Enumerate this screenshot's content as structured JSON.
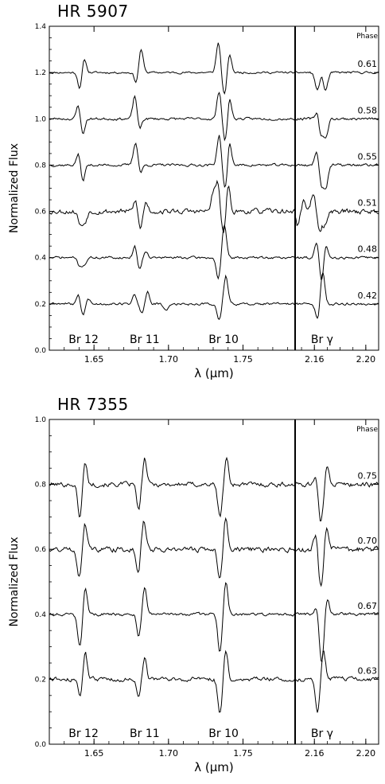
{
  "chart_data": [
    {
      "type": "line",
      "title": "HR 5907",
      "ylabel": "Normalized Flux",
      "xlabel": "λ (μm)",
      "ylim": [
        0.0,
        1.4
      ],
      "yticks": [
        "0.0",
        "0.2",
        "0.4",
        "0.6",
        "0.8",
        "1.0",
        "1.2",
        "1.4"
      ],
      "subpanels": [
        {
          "xlim": [
            1.62,
            1.785
          ],
          "xticks": [
            "1.65",
            "1.70",
            "1.75"
          ],
          "tick_values": [
            1.65,
            1.7,
            1.75
          ]
        },
        {
          "xlim": [
            2.145,
            2.21
          ],
          "xticks": [
            "2.16",
            "2.20"
          ],
          "tick_values": [
            2.16,
            2.2
          ]
        }
      ],
      "line_labels": [
        {
          "text": "Br 12",
          "x": 1.643,
          "panel": 0
        },
        {
          "text": "Br 11",
          "x": 1.684,
          "panel": 0
        },
        {
          "text": "Br 10",
          "x": 1.737,
          "panel": 0
        },
        {
          "text": "Br γ",
          "x": 2.166,
          "panel": 1
        }
      ],
      "phase_header": "Phase",
      "series": [
        {
          "name": "0.61",
          "baseline": 1.2,
          "seed": 11,
          "noise": 0.005,
          "features": [
            {
              "x": 1.6405,
              "a": -0.07,
              "w": 0.0013
            },
            {
              "x": 1.6435,
              "a": 0.06,
              "w": 0.0013
            },
            {
              "x": 1.6785,
              "a": -0.05,
              "w": 0.0013
            },
            {
              "x": 1.6815,
              "a": 0.1,
              "w": 0.0015
            },
            {
              "x": 1.7335,
              "a": 0.13,
              "w": 0.0014
            },
            {
              "x": 1.7375,
              "a": -0.1,
              "w": 0.0014
            },
            {
              "x": 1.741,
              "a": 0.08,
              "w": 0.0013
            },
            {
              "x": 2.1625,
              "a": -0.08,
              "w": 0.0018
            },
            {
              "x": 2.1685,
              "a": -0.08,
              "w": 0.0018
            },
            {
              "x": 2.1655,
              "a": 0.02,
              "w": 0.0016
            }
          ]
        },
        {
          "name": "0.58",
          "baseline": 1.0,
          "seed": 23,
          "noise": 0.006,
          "features": [
            {
              "x": 1.6395,
              "a": 0.06,
              "w": 0.0013
            },
            {
              "x": 1.6425,
              "a": -0.07,
              "w": 0.0013
            },
            {
              "x": 1.6775,
              "a": 0.1,
              "w": 0.0014
            },
            {
              "x": 1.6805,
              "a": -0.05,
              "w": 0.0013
            },
            {
              "x": 1.734,
              "a": 0.12,
              "w": 0.0014
            },
            {
              "x": 1.738,
              "a": -0.1,
              "w": 0.0014
            },
            {
              "x": 1.741,
              "a": 0.09,
              "w": 0.0013
            },
            {
              "x": 2.1625,
              "a": 0.04,
              "w": 0.0016
            },
            {
              "x": 2.165,
              "a": -0.08,
              "w": 0.0016
            },
            {
              "x": 2.169,
              "a": -0.08,
              "w": 0.0016
            }
          ]
        },
        {
          "name": "0.55",
          "baseline": 0.8,
          "seed": 37,
          "noise": 0.006,
          "features": [
            {
              "x": 1.6395,
              "a": 0.05,
              "w": 0.0013
            },
            {
              "x": 1.6425,
              "a": -0.07,
              "w": 0.0013
            },
            {
              "x": 1.678,
              "a": 0.1,
              "w": 0.0015
            },
            {
              "x": 1.681,
              "a": -0.04,
              "w": 0.0013
            },
            {
              "x": 1.734,
              "a": 0.13,
              "w": 0.0014
            },
            {
              "x": 1.738,
              "a": -0.11,
              "w": 0.0014
            },
            {
              "x": 1.741,
              "a": 0.1,
              "w": 0.0013
            },
            {
              "x": 2.162,
              "a": 0.06,
              "w": 0.0016
            },
            {
              "x": 2.1655,
              "a": -0.09,
              "w": 0.0016
            },
            {
              "x": 2.169,
              "a": -0.09,
              "w": 0.0016
            }
          ]
        },
        {
          "name": "0.51",
          "baseline": 0.6,
          "seed": 53,
          "noise": 0.012,
          "features": [
            {
              "x": 1.641,
              "a": -0.06,
              "w": 0.0015
            },
            {
              "x": 1.644,
              "a": -0.04,
              "w": 0.0013
            },
            {
              "x": 1.678,
              "a": 0.05,
              "w": 0.0013
            },
            {
              "x": 1.681,
              "a": -0.08,
              "w": 0.0013
            },
            {
              "x": 1.685,
              "a": 0.04,
              "w": 0.0013
            },
            {
              "x": 1.73,
              "a": 0.08,
              "w": 0.0013
            },
            {
              "x": 1.733,
              "a": 0.12,
              "w": 0.0013
            },
            {
              "x": 1.737,
              "a": -0.1,
              "w": 0.0014
            },
            {
              "x": 1.74,
              "a": 0.11,
              "w": 0.0013
            },
            {
              "x": 2.147,
              "a": -0.06,
              "w": 0.0014
            },
            {
              "x": 2.152,
              "a": 0.05,
              "w": 0.0014
            },
            {
              "x": 2.159,
              "a": 0.08,
              "w": 0.0016
            },
            {
              "x": 2.164,
              "a": -0.09,
              "w": 0.0016
            },
            {
              "x": 2.168,
              "a": -0.06,
              "w": 0.0016
            }
          ]
        },
        {
          "name": "0.48",
          "baseline": 0.4,
          "seed": 71,
          "noise": 0.006,
          "features": [
            {
              "x": 1.6405,
              "a": -0.04,
              "w": 0.0013
            },
            {
              "x": 1.6435,
              "a": -0.03,
              "w": 0.0013
            },
            {
              "x": 1.6775,
              "a": 0.05,
              "w": 0.0013
            },
            {
              "x": 1.6805,
              "a": -0.05,
              "w": 0.0013
            },
            {
              "x": 1.685,
              "a": 0.03,
              "w": 0.0013
            },
            {
              "x": 1.7335,
              "a": -0.09,
              "w": 0.0014
            },
            {
              "x": 1.7375,
              "a": 0.14,
              "w": 0.0014
            },
            {
              "x": 2.162,
              "a": 0.07,
              "w": 0.0016
            },
            {
              "x": 2.1655,
              "a": -0.11,
              "w": 0.0016
            },
            {
              "x": 2.169,
              "a": 0.06,
              "w": 0.0016
            }
          ]
        },
        {
          "name": "0.42",
          "baseline": 0.2,
          "seed": 89,
          "noise": 0.006,
          "features": [
            {
              "x": 1.6395,
              "a": 0.04,
              "w": 0.0013
            },
            {
              "x": 1.6425,
              "a": -0.05,
              "w": 0.0013
            },
            {
              "x": 1.646,
              "a": 0.02,
              "w": 0.0013
            },
            {
              "x": 1.677,
              "a": 0.04,
              "w": 0.0013
            },
            {
              "x": 1.682,
              "a": -0.04,
              "w": 0.0013
            },
            {
              "x": 1.686,
              "a": 0.05,
              "w": 0.0013
            },
            {
              "x": 1.698,
              "a": -0.03,
              "w": 0.0015
            },
            {
              "x": 1.734,
              "a": -0.07,
              "w": 0.0014
            },
            {
              "x": 1.7385,
              "a": 0.12,
              "w": 0.0014
            },
            {
              "x": 2.1625,
              "a": -0.07,
              "w": 0.0016
            },
            {
              "x": 2.1665,
              "a": 0.14,
              "w": 0.0016
            }
          ]
        }
      ]
    },
    {
      "type": "line",
      "title": "HR 7355",
      "ylabel": "Normalized Flux",
      "xlabel": "λ (μm)",
      "ylim": [
        0.0,
        1.0
      ],
      "yticks": [
        "0.0",
        "0.2",
        "0.4",
        "0.6",
        "0.8",
        "1.0"
      ],
      "subpanels": [
        {
          "xlim": [
            1.62,
            1.785
          ],
          "xticks": [
            "1.65",
            "1.70",
            "1.75"
          ],
          "tick_values": [
            1.65,
            1.7,
            1.75
          ]
        },
        {
          "xlim": [
            2.145,
            2.21
          ],
          "xticks": [
            "2.16",
            "2.20"
          ],
          "tick_values": [
            2.16,
            2.2
          ]
        }
      ],
      "line_labels": [
        {
          "text": "Br 12",
          "x": 1.643,
          "panel": 0
        },
        {
          "text": "Br 11",
          "x": 1.684,
          "panel": 0
        },
        {
          "text": "Br 10",
          "x": 1.737,
          "panel": 0
        },
        {
          "text": "Br γ",
          "x": 2.166,
          "panel": 1
        }
      ],
      "phase_header": "Phase",
      "series": [
        {
          "name": "0.75",
          "baseline": 0.8,
          "seed": 101,
          "noise": 0.008,
          "features": [
            {
              "x": 1.6405,
              "a": -0.1,
              "w": 0.0014
            },
            {
              "x": 1.644,
              "a": 0.07,
              "w": 0.0013
            },
            {
              "x": 1.68,
              "a": -0.08,
              "w": 0.0013
            },
            {
              "x": 1.684,
              "a": 0.08,
              "w": 0.0013
            },
            {
              "x": 1.7345,
              "a": -0.1,
              "w": 0.0014
            },
            {
              "x": 1.739,
              "a": 0.08,
              "w": 0.0013
            },
            {
              "x": 2.161,
              "a": 0.03,
              "w": 0.0016
            },
            {
              "x": 2.165,
              "a": -0.12,
              "w": 0.0018
            },
            {
              "x": 2.17,
              "a": 0.06,
              "w": 0.0016
            }
          ]
        },
        {
          "name": "0.70",
          "baseline": 0.6,
          "seed": 131,
          "noise": 0.009,
          "features": [
            {
              "x": 1.64,
              "a": -0.08,
              "w": 0.0014
            },
            {
              "x": 1.644,
              "a": 0.08,
              "w": 0.0013
            },
            {
              "x": 1.6795,
              "a": -0.08,
              "w": 0.0013
            },
            {
              "x": 1.6835,
              "a": 0.09,
              "w": 0.0013
            },
            {
              "x": 1.7345,
              "a": -0.09,
              "w": 0.0014
            },
            {
              "x": 1.7385,
              "a": 0.1,
              "w": 0.0013
            },
            {
              "x": 2.161,
              "a": 0.05,
              "w": 0.0016
            },
            {
              "x": 2.165,
              "a": -0.12,
              "w": 0.0018
            },
            {
              "x": 2.1695,
              "a": 0.07,
              "w": 0.0016
            }
          ]
        },
        {
          "name": "0.67",
          "baseline": 0.4,
          "seed": 151,
          "noise": 0.005,
          "features": [
            {
              "x": 1.6405,
              "a": -0.1,
              "w": 0.0015
            },
            {
              "x": 1.644,
              "a": 0.08,
              "w": 0.0013
            },
            {
              "x": 1.68,
              "a": -0.07,
              "w": 0.0013
            },
            {
              "x": 1.684,
              "a": 0.08,
              "w": 0.0013
            },
            {
              "x": 1.7345,
              "a": -0.12,
              "w": 0.0014
            },
            {
              "x": 1.7385,
              "a": 0.1,
              "w": 0.0013
            },
            {
              "x": 2.162,
              "a": 0.03,
              "w": 0.0016
            },
            {
              "x": 2.1655,
              "a": -0.15,
              "w": 0.0018
            },
            {
              "x": 2.17,
              "a": 0.05,
              "w": 0.0016
            }
          ]
        },
        {
          "name": "0.63",
          "baseline": 0.2,
          "seed": 173,
          "noise": 0.007,
          "features": [
            {
              "x": 1.641,
              "a": -0.06,
              "w": 0.0014
            },
            {
              "x": 1.644,
              "a": 0.09,
              "w": 0.0013
            },
            {
              "x": 1.68,
              "a": -0.05,
              "w": 0.0013
            },
            {
              "x": 1.684,
              "a": 0.07,
              "w": 0.0013
            },
            {
              "x": 1.7345,
              "a": -0.11,
              "w": 0.0014
            },
            {
              "x": 1.7385,
              "a": 0.09,
              "w": 0.0013
            },
            {
              "x": 2.1625,
              "a": -0.1,
              "w": 0.0016
            },
            {
              "x": 2.167,
              "a": 0.09,
              "w": 0.0016
            }
          ]
        }
      ]
    }
  ]
}
